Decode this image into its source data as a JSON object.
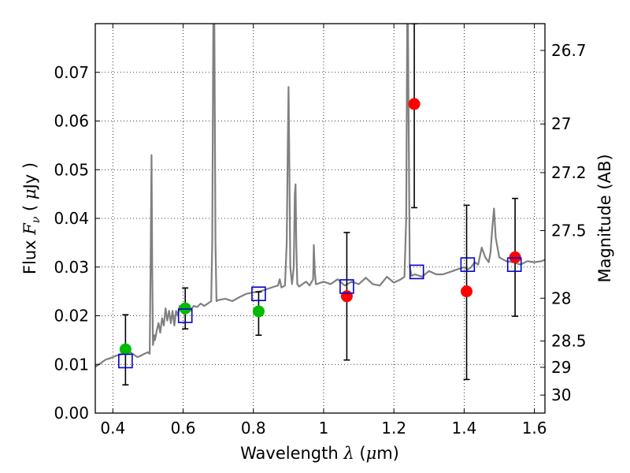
{
  "chart_data": {
    "type": "scatter",
    "xlabel": "Wavelength",
    "xlabel_symbol": "λ",
    "xlabel_unit_open": " (",
    "xlabel_unit_mu": "μ",
    "xlabel_unit_rest": "m)",
    "ylabel": "Flux",
    "ylabel_symbol_F": "F",
    "ylabel_symbol_sub": "ν",
    "ylabel_unit_open": "(",
    "ylabel_unit_mu": "μ",
    "ylabel_unit_rest": "Jy",
    "ylabel_unit_close": ")",
    "y2label": "Magnitude (AB)",
    "xlim": [
      0.35,
      1.63
    ],
    "ylim": [
      0.0,
      0.08
    ],
    "grid": true,
    "xticks": [
      0.4,
      0.6,
      0.8,
      1.0,
      1.2,
      1.4,
      1.6
    ],
    "xtick_labels": [
      "0.4",
      "0.6",
      "0.8",
      "1",
      "1.2",
      "1.4",
      "1.6"
    ],
    "yticks": [
      0.0,
      0.01,
      0.02,
      0.03,
      0.04,
      0.05,
      0.06,
      0.07
    ],
    "ytick_labels": [
      "0.00",
      "0.01",
      "0.02",
      "0.03",
      "0.04",
      "0.05",
      "0.06",
      "0.07"
    ],
    "mag_ticks": [
      {
        "label": "26.7",
        "flux": 0.0745
      },
      {
        "label": "27",
        "flux": 0.0594
      },
      {
        "label": "27.2",
        "flux": 0.0494
      },
      {
        "label": "27.5",
        "flux": 0.0375
      },
      {
        "label": "28",
        "flux": 0.0236
      },
      {
        "label": "28.5",
        "flux": 0.0148
      },
      {
        "label": "29",
        "flux": 0.0094
      },
      {
        "label": "30",
        "flux": 0.0037
      }
    ],
    "spectrum": {
      "name": "model spectrum",
      "color": "#808080",
      "x": [
        0.35,
        0.36,
        0.37,
        0.38,
        0.39,
        0.4,
        0.41,
        0.42,
        0.43,
        0.44,
        0.45,
        0.46,
        0.47,
        0.48,
        0.49,
        0.5,
        0.505,
        0.508,
        0.51,
        0.512,
        0.514,
        0.518,
        0.52,
        0.525,
        0.53,
        0.535,
        0.54,
        0.545,
        0.55,
        0.555,
        0.56,
        0.565,
        0.57,
        0.575,
        0.58,
        0.585,
        0.59,
        0.595,
        0.6,
        0.61,
        0.62,
        0.63,
        0.64,
        0.65,
        0.66,
        0.67,
        0.68,
        0.683,
        0.686,
        0.689,
        0.692,
        0.695,
        0.7,
        0.72,
        0.74,
        0.76,
        0.78,
        0.8,
        0.82,
        0.84,
        0.86,
        0.87,
        0.875,
        0.88,
        0.89,
        0.895,
        0.898,
        0.9,
        0.902,
        0.905,
        0.91,
        0.915,
        0.918,
        0.92,
        0.922,
        0.925,
        0.93,
        0.94,
        0.95,
        0.96,
        0.97,
        0.972,
        0.975,
        0.978,
        0.98,
        1.0,
        1.02,
        1.04,
        1.06,
        1.08,
        1.1,
        1.12,
        1.14,
        1.16,
        1.18,
        1.2,
        1.22,
        1.23,
        1.235,
        1.238,
        1.24,
        1.242,
        1.245,
        1.25,
        1.26,
        1.28,
        1.3,
        1.32,
        1.34,
        1.36,
        1.38,
        1.4,
        1.41,
        1.42,
        1.43,
        1.44,
        1.45,
        1.46,
        1.47,
        1.475,
        1.48,
        1.485,
        1.49,
        1.5,
        1.52,
        1.54,
        1.56,
        1.58,
        1.6,
        1.62,
        1.63
      ],
      "y": [
        0.0095,
        0.01,
        0.0105,
        0.011,
        0.0112,
        0.0115,
        0.0118,
        0.012,
        0.0122,
        0.0125,
        0.0125,
        0.012,
        0.0115,
        0.0118,
        0.0122,
        0.0125,
        0.0122,
        0.035,
        0.053,
        0.03,
        0.014,
        0.016,
        0.015,
        0.017,
        0.0185,
        0.0165,
        0.0195,
        0.018,
        0.0215,
        0.019,
        0.021,
        0.0185,
        0.021,
        0.018,
        0.021,
        0.02,
        0.022,
        0.0215,
        0.0225,
        0.0218,
        0.021,
        0.022,
        0.0218,
        0.0225,
        0.022,
        0.0225,
        0.023,
        0.035,
        0.08,
        0.08,
        0.035,
        0.023,
        0.0232,
        0.0235,
        0.023,
        0.0238,
        0.0245,
        0.0248,
        0.025,
        0.0255,
        0.026,
        0.0262,
        0.0275,
        0.0258,
        0.0262,
        0.035,
        0.056,
        0.067,
        0.055,
        0.03,
        0.0265,
        0.03,
        0.045,
        0.047,
        0.035,
        0.0265,
        0.026,
        0.0265,
        0.027,
        0.0262,
        0.0275,
        0.0345,
        0.029,
        0.0265,
        0.0265,
        0.027,
        0.0265,
        0.0275,
        0.0262,
        0.027,
        0.0265,
        0.0278,
        0.0265,
        0.0262,
        0.028,
        0.0268,
        0.0275,
        0.028,
        0.04,
        0.08,
        0.08,
        0.06,
        0.03,
        0.0282,
        0.0285,
        0.028,
        0.0292,
        0.0285,
        0.0285,
        0.029,
        0.0295,
        0.03,
        0.0295,
        0.03,
        0.031,
        0.0305,
        0.034,
        0.032,
        0.031,
        0.033,
        0.038,
        0.042,
        0.036,
        0.032,
        0.0312,
        0.031,
        0.0305,
        0.0312,
        0.031,
        0.0312,
        0.0315
      ]
    },
    "series": [
      {
        "name": "green points",
        "marker": "circle",
        "color": "#00bb00",
        "x": [
          0.436,
          0.606,
          0.815
        ],
        "y": [
          0.0131,
          0.0215,
          0.0209
        ]
      },
      {
        "name": "red points",
        "marker": "circle",
        "color": "#ff0000",
        "x": [
          1.066,
          1.258,
          1.407,
          1.545
        ],
        "y": [
          0.024,
          0.0635,
          0.025,
          0.032
        ]
      },
      {
        "name": "blue squares",
        "marker": "square",
        "color": "#0000cc",
        "x": [
          0.436,
          0.606,
          0.815,
          1.066,
          1.265,
          1.41,
          1.543
        ],
        "y": [
          0.0107,
          0.02,
          0.0245,
          0.026,
          0.029,
          0.0305,
          0.0305
        ]
      }
    ],
    "errorbars": [
      {
        "x": 0.436,
        "lo": 0.0058,
        "hi": 0.0202
      },
      {
        "x": 0.606,
        "lo": 0.0173,
        "hi": 0.0257
      },
      {
        "x": 0.815,
        "lo": 0.016,
        "hi": 0.0249
      },
      {
        "x": 1.066,
        "lo": 0.0109,
        "hi": 0.0371
      },
      {
        "x": 1.258,
        "lo": 0.0422,
        "hi": 0.08
      },
      {
        "x": 1.407,
        "lo": 0.0069,
        "hi": 0.0427
      },
      {
        "x": 1.545,
        "lo": 0.0199,
        "hi": 0.0441
      }
    ]
  }
}
